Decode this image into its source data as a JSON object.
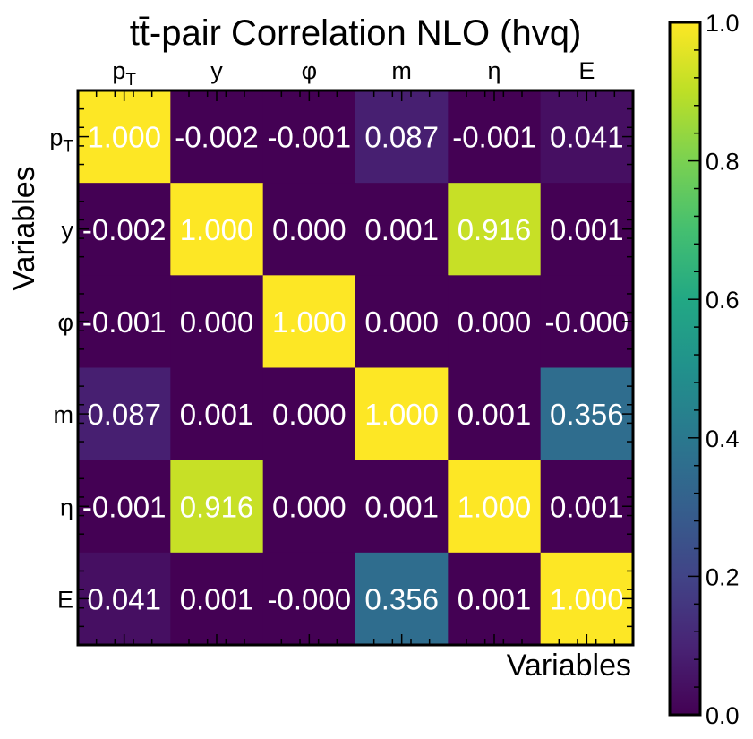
{
  "chart_data": {
    "type": "heatmap",
    "title": "tt̄-pair Correlation NLO (hvq)",
    "xlabel": "Variables",
    "ylabel": "Variables",
    "x_categories": [
      "pT",
      "y",
      "φ",
      "m",
      "η",
      "E"
    ],
    "y_categories": [
      "pT",
      "y",
      "φ",
      "m",
      "η",
      "E"
    ],
    "values": [
      [
        1.0,
        -0.002,
        -0.001,
        0.087,
        -0.001,
        0.041
      ],
      [
        -0.002,
        1.0,
        0.0,
        0.001,
        0.916,
        0.001
      ],
      [
        -0.001,
        0.0,
        1.0,
        0.0,
        0.0,
        -0.0
      ],
      [
        0.087,
        0.001,
        0.0,
        1.0,
        0.001,
        0.356
      ],
      [
        -0.001,
        0.916,
        0.0,
        0.001,
        1.0,
        0.001
      ],
      [
        0.041,
        0.001,
        -0.0,
        0.356,
        0.001,
        1.0
      ]
    ],
    "cell_labels": [
      [
        "1.000",
        "-0.002",
        "-0.001",
        "0.087",
        "-0.001",
        "0.041"
      ],
      [
        "-0.002",
        "1.000",
        "0.000",
        "0.001",
        "0.916",
        "0.001"
      ],
      [
        "-0.001",
        "0.000",
        "1.000",
        "0.000",
        "0.000",
        "-0.000"
      ],
      [
        "0.087",
        "0.001",
        "0.000",
        "1.000",
        "0.001",
        "0.356"
      ],
      [
        "-0.001",
        "0.916",
        "0.000",
        "0.001",
        "1.000",
        "0.001"
      ],
      [
        "0.041",
        "0.001",
        "-0.000",
        "0.356",
        "0.001",
        "1.000"
      ]
    ],
    "x_axis_position": "top",
    "colormap": "viridis",
    "colorbar": {
      "range": [
        0.0,
        1.0
      ],
      "ticks": [
        0.0,
        0.2,
        0.4,
        0.6,
        0.8,
        1.0
      ],
      "tick_labels": [
        "0.0",
        "0.2",
        "0.4",
        "0.6",
        "0.8",
        "1.0"
      ]
    },
    "grid": false
  }
}
